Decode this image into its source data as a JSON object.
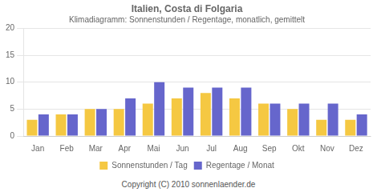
{
  "chart_data": {
    "type": "bar",
    "title": "Italien, Costa di Folgaria",
    "subtitle": "Klimadiagramm: Sonnenstunden / Regentage, monatlich, gemittelt",
    "annotations": [
      "Copyright (C) 2010 sonnenlaender.de"
    ],
    "categories": [
      "Jan",
      "Feb",
      "Mar",
      "Apr",
      "Mai",
      "Jun",
      "Jul",
      "Aug",
      "Sep",
      "Okt",
      "Nov",
      "Dez"
    ],
    "series": [
      {
        "name": "Sonnenstunden / Tag",
        "color": "#F5C842",
        "values": [
          3,
          4,
          5,
          5,
          6,
          7,
          8,
          7,
          6,
          5,
          3,
          3
        ]
      },
      {
        "name": "Regentage / Monat",
        "color": "#6666CC",
        "values": [
          4,
          4,
          5,
          7,
          10,
          9,
          9,
          9,
          6,
          6,
          6,
          4
        ]
      }
    ],
    "ylim": [
      0,
      20
    ],
    "yticks": [
      0,
      5,
      10,
      15,
      20
    ],
    "grid": true,
    "legend": "bottom"
  }
}
